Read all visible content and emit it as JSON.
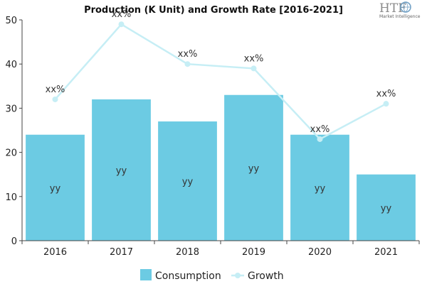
{
  "chart_data": {
    "type": "bar",
    "title": "Production (K Unit) and Growth Rate [2016-2021]",
    "categories": [
      "2016",
      "2017",
      "2018",
      "2019",
      "2020",
      "2021"
    ],
    "ylim": [
      0,
      50
    ],
    "yticks": [
      0,
      10,
      20,
      30,
      40,
      50
    ],
    "grid": false,
    "legend_position": "bottom",
    "series": [
      {
        "name": "Consumption",
        "type": "bar",
        "color": "#6ccbe3",
        "values": [
          24,
          32,
          27,
          33,
          24,
          15
        ],
        "labels": [
          "yy",
          "yy",
          "yy",
          "yy",
          "yy",
          "yy"
        ]
      },
      {
        "name": "Growth",
        "type": "line",
        "color": "#c6eef5",
        "values": [
          32,
          49,
          40,
          39,
          23,
          31
        ],
        "labels": [
          "xx%",
          "xx%",
          "xx%",
          "xx%",
          "xx%",
          "xx%"
        ]
      }
    ]
  },
  "logo": {
    "brand": "HTF",
    "subtitle": "Market Intelligence"
  }
}
